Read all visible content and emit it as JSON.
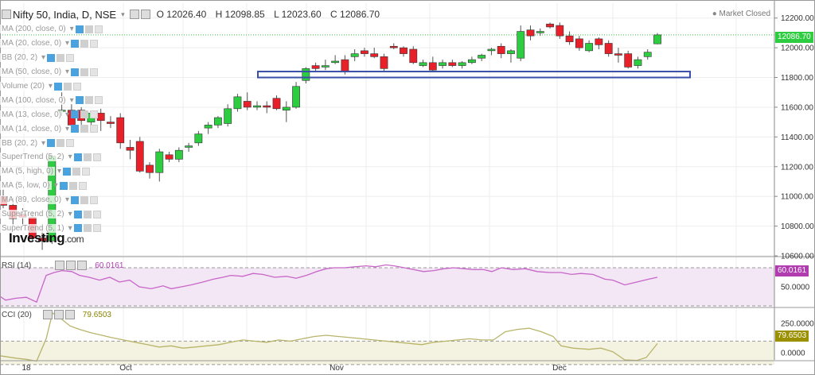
{
  "header": {
    "symbol": "Nifty 50, India, D, NSE",
    "open": "O 12026.40",
    "high": "H 12098.85",
    "low": "L 12023.60",
    "close": "C 12086.70"
  },
  "status": {
    "market": "Market Closed"
  },
  "logo": {
    "main": "Investing",
    "suffix": ".com"
  },
  "indicators": [
    "MA (200, close, 0)",
    "MA (20, close, 0)",
    "BB (20, 2)",
    "MA (50, close, 0)",
    "Volume (20)",
    "MA (100, close, 0)",
    "MA (13, close, 0)",
    "MA (14, close, 0)",
    "BB (20, 2)",
    "SuperTrend (5, 2)",
    "MA (5, high, 0)",
    "MA (5, low, 0)",
    "MA (89, close, 0)",
    "SuperTrend (5, 2)",
    "SuperTrend (5, 1)"
  ],
  "colors": {
    "up": "#2ecc40",
    "down": "#e8202a",
    "rsi_line": "#c866c8",
    "rsi_band": "#f3e6f5",
    "cci_line": "#b8b46a",
    "cci_band": "#f4f2e0",
    "price_tag": "#2ecc40",
    "rsi_tag": "#b03cb0",
    "cci_tag": "#9a9000",
    "support_box": "#3a4fa8"
  },
  "chart_data": [
    {
      "type": "candlestick",
      "title": "Nifty 50, India, D, NSE",
      "ylim": [
        10600,
        12300
      ],
      "yticks": [
        "12200.00",
        "12000.00",
        "11800.00",
        "11600.00",
        "11400.00",
        "11200.00",
        "11000.00",
        "10800.00",
        "10600.00"
      ],
      "ytick_values": [
        12200,
        12000,
        11800,
        11600,
        11400,
        11200,
        11000,
        10800,
        10600
      ],
      "xticks": [
        "18",
        "Oct",
        "Nov",
        "Dec"
      ],
      "last_price_label": "12086.70",
      "last_price": 12086.7,
      "support_zone": [
        11800,
        11840
      ],
      "candles": [
        {
          "o": 11000,
          "h": 11050,
          "l": 10920,
          "c": 10940
        },
        {
          "o": 10940,
          "h": 10990,
          "l": 10800,
          "c": 10850
        },
        {
          "o": 10880,
          "h": 10920,
          "l": 10800,
          "c": 10860
        },
        {
          "o": 10860,
          "h": 10900,
          "l": 10700,
          "c": 10720
        },
        {
          "o": 10720,
          "h": 10800,
          "l": 10640,
          "c": 10700
        },
        {
          "o": 10700,
          "h": 11280,
          "l": 10680,
          "c": 11270
        },
        {
          "o": 11580,
          "h": 11700,
          "l": 11540,
          "c": 11580
        },
        {
          "o": 11580,
          "h": 11620,
          "l": 11460,
          "c": 11480
        },
        {
          "o": 11580,
          "h": 11600,
          "l": 11470,
          "c": 11510
        },
        {
          "o": 11500,
          "h": 11560,
          "l": 11440,
          "c": 11560
        },
        {
          "o": 11560,
          "h": 11590,
          "l": 11440,
          "c": 11510
        },
        {
          "o": 11500,
          "h": 11540,
          "l": 11460,
          "c": 11490
        },
        {
          "o": 11530,
          "h": 11560,
          "l": 11320,
          "c": 11360
        },
        {
          "o": 11330,
          "h": 11380,
          "l": 11250,
          "c": 11310
        },
        {
          "o": 11370,
          "h": 11400,
          "l": 11160,
          "c": 11170
        },
        {
          "o": 11210,
          "h": 11230,
          "l": 11120,
          "c": 11160
        },
        {
          "o": 11160,
          "h": 11320,
          "l": 11100,
          "c": 11300
        },
        {
          "o": 11280,
          "h": 11300,
          "l": 11230,
          "c": 11250
        },
        {
          "o": 11250,
          "h": 11330,
          "l": 11230,
          "c": 11310
        },
        {
          "o": 11330,
          "h": 11360,
          "l": 11300,
          "c": 11340
        },
        {
          "o": 11360,
          "h": 11440,
          "l": 11340,
          "c": 11420
        },
        {
          "o": 11460,
          "h": 11500,
          "l": 11420,
          "c": 11480
        },
        {
          "o": 11480,
          "h": 11540,
          "l": 11460,
          "c": 11530
        },
        {
          "o": 11490,
          "h": 11620,
          "l": 11470,
          "c": 11590
        },
        {
          "o": 11590,
          "h": 11690,
          "l": 11570,
          "c": 11670
        },
        {
          "o": 11640,
          "h": 11700,
          "l": 11580,
          "c": 11600
        },
        {
          "o": 11600,
          "h": 11640,
          "l": 11580,
          "c": 11610
        },
        {
          "o": 11610,
          "h": 11640,
          "l": 11560,
          "c": 11600
        },
        {
          "o": 11660,
          "h": 11680,
          "l": 11580,
          "c": 11590
        },
        {
          "o": 11580,
          "h": 11640,
          "l": 11500,
          "c": 11600
        },
        {
          "o": 11600,
          "h": 11770,
          "l": 11590,
          "c": 11740
        },
        {
          "o": 11780,
          "h": 11870,
          "l": 11760,
          "c": 11860
        },
        {
          "o": 11880,
          "h": 11900,
          "l": 11840,
          "c": 11860
        },
        {
          "o": 11870,
          "h": 11920,
          "l": 11850,
          "c": 11880
        },
        {
          "o": 11900,
          "h": 11950,
          "l": 11890,
          "c": 11910
        },
        {
          "o": 11920,
          "h": 11950,
          "l": 11820,
          "c": 11840
        },
        {
          "o": 11940,
          "h": 11990,
          "l": 11910,
          "c": 11960
        },
        {
          "o": 11980,
          "h": 12000,
          "l": 11940,
          "c": 11960
        },
        {
          "o": 11960,
          "h": 12000,
          "l": 11930,
          "c": 11940
        },
        {
          "o": 11940,
          "h": 11960,
          "l": 11840,
          "c": 11860
        },
        {
          "o": 12010,
          "h": 12030,
          "l": 11990,
          "c": 12000
        },
        {
          "o": 12000,
          "h": 12010,
          "l": 11940,
          "c": 11960
        },
        {
          "o": 11990,
          "h": 12010,
          "l": 11890,
          "c": 11900
        },
        {
          "o": 11880,
          "h": 11920,
          "l": 11870,
          "c": 11900
        },
        {
          "o": 11900,
          "h": 11940,
          "l": 11840,
          "c": 11850
        },
        {
          "o": 11880,
          "h": 11920,
          "l": 11860,
          "c": 11900
        },
        {
          "o": 11900,
          "h": 11920,
          "l": 11870,
          "c": 11880
        },
        {
          "o": 11880,
          "h": 11910,
          "l": 11860,
          "c": 11900
        },
        {
          "o": 11900,
          "h": 11940,
          "l": 11890,
          "c": 11920
        },
        {
          "o": 11930,
          "h": 11960,
          "l": 11910,
          "c": 11950
        },
        {
          "o": 11980,
          "h": 12000,
          "l": 11950,
          "c": 11990
        },
        {
          "o": 12010,
          "h": 12030,
          "l": 11930,
          "c": 11960
        },
        {
          "o": 11960,
          "h": 11990,
          "l": 11900,
          "c": 11980
        },
        {
          "o": 11930,
          "h": 12150,
          "l": 11910,
          "c": 12110
        },
        {
          "o": 12120,
          "h": 12150,
          "l": 12050,
          "c": 12080
        },
        {
          "o": 12100,
          "h": 12130,
          "l": 12080,
          "c": 12110
        },
        {
          "o": 12160,
          "h": 12170,
          "l": 12130,
          "c": 12140
        },
        {
          "o": 12150,
          "h": 12170,
          "l": 12060,
          "c": 12080
        },
        {
          "o": 12080,
          "h": 12110,
          "l": 12020,
          "c": 12040
        },
        {
          "o": 12060,
          "h": 12080,
          "l": 11980,
          "c": 12000
        },
        {
          "o": 11980,
          "h": 12050,
          "l": 11970,
          "c": 12030
        },
        {
          "o": 12060,
          "h": 12070,
          "l": 11990,
          "c": 12020
        },
        {
          "o": 12030,
          "h": 12050,
          "l": 11940,
          "c": 11960
        },
        {
          "o": 11960,
          "h": 12000,
          "l": 11900,
          "c": 11950
        },
        {
          "o": 11960,
          "h": 11980,
          "l": 11860,
          "c": 11870
        },
        {
          "o": 11880,
          "h": 11940,
          "l": 11860,
          "c": 11920
        },
        {
          "o": 11940,
          "h": 11990,
          "l": 11920,
          "c": 11970
        },
        {
          "o": 12026.4,
          "h": 12098.85,
          "l": 12023.6,
          "c": 12086.7
        }
      ]
    },
    {
      "type": "line",
      "title": "RSI (14)",
      "value_label": "60.0161",
      "ylim": [
        30,
        80
      ],
      "yticks": [
        "50.0000"
      ],
      "ytick_values": [
        50
      ],
      "band": [
        30,
        70
      ],
      "x": [
        0,
        7,
        20,
        33,
        46,
        58,
        68,
        78,
        90,
        100,
        112,
        125,
        138,
        150,
        163,
        175,
        190,
        205,
        215,
        228,
        240,
        255,
        268,
        280,
        290,
        305,
        318,
        330,
        345,
        360,
        372,
        385,
        398,
        410,
        420,
        433,
        446,
        460,
        472,
        485,
        495,
        508,
        520,
        532,
        545,
        558,
        570,
        583,
        595,
        608,
        618,
        630,
        645,
        660,
        675,
        690,
        705,
        718,
        730,
        745,
        760,
        770,
        785,
        800,
        815,
        826
      ],
      "values": [
        40,
        36,
        38,
        39,
        34,
        62,
        65,
        67,
        66,
        62,
        60,
        57,
        60,
        55,
        57,
        50,
        48,
        51,
        48,
        50,
        52,
        55,
        58,
        60,
        62,
        61,
        64,
        63,
        60,
        61,
        59,
        62,
        66,
        69,
        70,
        70,
        71,
        72,
        71,
        73,
        72,
        70,
        68,
        66,
        67,
        69,
        70,
        69,
        68,
        68,
        66,
        70,
        68,
        69,
        66,
        65,
        65,
        63,
        64,
        63,
        58,
        57,
        52,
        55,
        58,
        60.0161
      ]
    },
    {
      "type": "line",
      "title": "CCI (20)",
      "value_label": "79.6503",
      "ylim": [
        -60,
        380
      ],
      "yticks": [
        "250.0000",
        "0.0000"
      ],
      "ytick_values": [
        250,
        0
      ],
      "band": [
        -100,
        100
      ],
      "x": [
        0,
        10,
        20,
        33,
        46,
        58,
        66,
        75,
        88,
        100,
        115,
        128,
        140,
        155,
        170,
        185,
        200,
        215,
        230,
        245,
        260,
        275,
        290,
        305,
        320,
        335,
        350,
        365,
        380,
        395,
        410,
        425,
        440,
        455,
        470,
        485,
        500,
        515,
        530,
        545,
        560,
        575,
        590,
        605,
        620,
        635,
        650,
        665,
        680,
        695,
        705,
        720,
        740,
        755,
        770,
        785,
        800,
        812,
        826
      ],
      "values": [
        -25,
        -35,
        -45,
        -55,
        -70,
        120,
        340,
        300,
        230,
        200,
        170,
        150,
        130,
        110,
        90,
        70,
        50,
        60,
        40,
        50,
        60,
        70,
        90,
        110,
        100,
        90,
        110,
        100,
        120,
        140,
        150,
        140,
        130,
        120,
        110,
        100,
        90,
        80,
        70,
        90,
        100,
        110,
        120,
        110,
        110,
        180,
        200,
        210,
        180,
        140,
        60,
        40,
        30,
        40,
        10,
        -60,
        -65,
        -40,
        79.6503
      ]
    }
  ]
}
